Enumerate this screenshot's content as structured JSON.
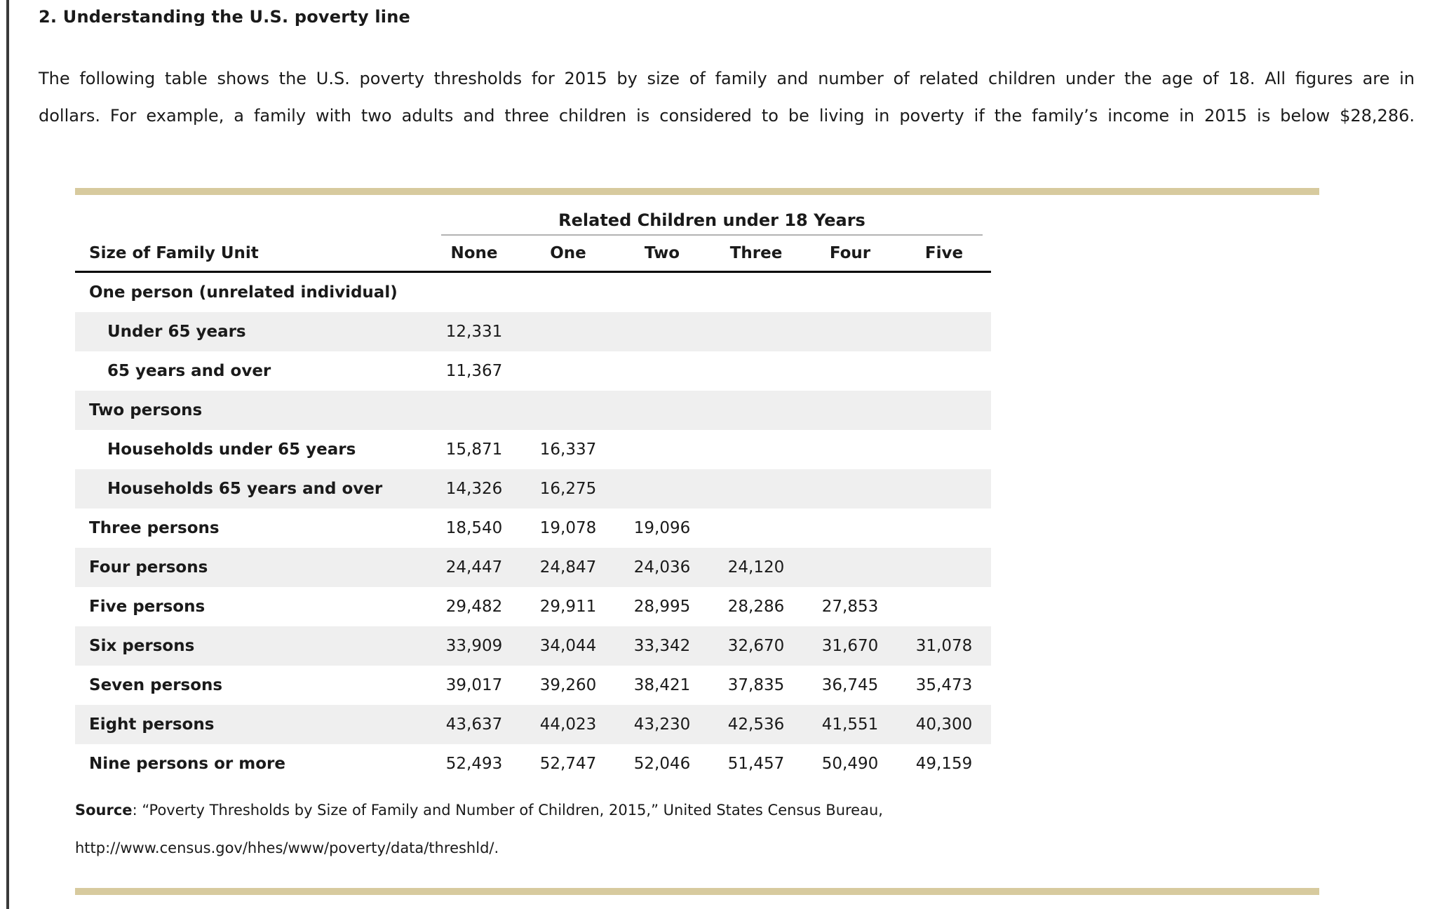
{
  "page": {
    "title": "2. Understanding the U.S. poverty line",
    "paragraph_lines": [
      "The following table shows the U.S. poverty thresholds for 2015 by size of family and number of related children under the age of 18. All figures are in",
      "dollars. For example, a family with two adults and three children is considered to be living in poverty if the family’s income in 2015 is below $28,286."
    ]
  },
  "table": {
    "group_header": "Related Children under 18 Years",
    "columns": [
      "Size of Family Unit",
      "None",
      "One",
      "Two",
      "Three",
      "Four",
      "Five"
    ],
    "rows": [
      {
        "label": "One person (unrelated individual)",
        "indent": false,
        "shaded": false,
        "values": [
          "",
          "",
          "",
          "",
          "",
          ""
        ]
      },
      {
        "label": "Under 65 years",
        "indent": true,
        "shaded": true,
        "values": [
          "12,331",
          "",
          "",
          "",
          "",
          ""
        ]
      },
      {
        "label": "65 years and over",
        "indent": true,
        "shaded": false,
        "values": [
          "11,367",
          "",
          "",
          "",
          "",
          ""
        ]
      },
      {
        "label": "Two persons",
        "indent": false,
        "shaded": true,
        "values": [
          "",
          "",
          "",
          "",
          "",
          ""
        ]
      },
      {
        "label": "Households under 65 years",
        "indent": true,
        "shaded": false,
        "values": [
          "15,871",
          "16,337",
          "",
          "",
          "",
          ""
        ]
      },
      {
        "label": "Households 65 years and over",
        "indent": true,
        "shaded": true,
        "values": [
          "14,326",
          "16,275",
          "",
          "",
          "",
          ""
        ]
      },
      {
        "label": "Three persons",
        "indent": false,
        "shaded": false,
        "values": [
          "18,540",
          "19,078",
          "19,096",
          "",
          "",
          ""
        ]
      },
      {
        "label": "Four persons",
        "indent": false,
        "shaded": true,
        "values": [
          "24,447",
          "24,847",
          "24,036",
          "24,120",
          "",
          ""
        ]
      },
      {
        "label": "Five persons",
        "indent": false,
        "shaded": false,
        "values": [
          "29,482",
          "29,911",
          "28,995",
          "28,286",
          "27,853",
          ""
        ]
      },
      {
        "label": "Six persons",
        "indent": false,
        "shaded": true,
        "values": [
          "33,909",
          "34,044",
          "33,342",
          "32,670",
          "31,670",
          "31,078"
        ]
      },
      {
        "label": "Seven persons",
        "indent": false,
        "shaded": false,
        "values": [
          "39,017",
          "39,260",
          "38,421",
          "37,835",
          "36,745",
          "35,473"
        ]
      },
      {
        "label": "Eight persons",
        "indent": false,
        "shaded": true,
        "values": [
          "43,637",
          "44,023",
          "43,230",
          "42,536",
          "41,551",
          "40,300"
        ]
      },
      {
        "label": "Nine persons or more",
        "indent": false,
        "shaded": false,
        "values": [
          "52,493",
          "52,747",
          "52,046",
          "51,457",
          "50,490",
          "49,159"
        ]
      }
    ]
  },
  "source": {
    "label": "Source",
    "text": ": “Poverty Thresholds by Size of Family and Number of Children, 2015,” United States Census Bureau,",
    "url_line": "http://www.census.gov/hhes/www/poverty/data/threshld/."
  },
  "colors": {
    "accent_bar": "#d7ca9e",
    "row_shade": "#efefef",
    "header_rule": "#000000",
    "group_rule": "#b3b3b3",
    "left_edge": "#3a3a3a"
  }
}
